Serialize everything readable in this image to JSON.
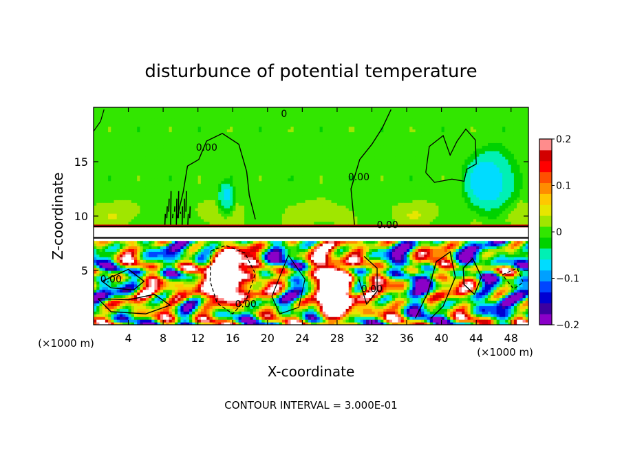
{
  "chart_data": {
    "type": "heatmap",
    "title": "disturbunce of potential temperature",
    "xlabel": "X-coordinate",
    "ylabel": "Z-coordinate",
    "x_unit_left": "(×1000 m)",
    "x_unit_right": "(×1000 m)",
    "footer": "CONTOUR INTERVAL = 3.000E-01",
    "xlim": [
      0,
      50
    ],
    "ylim": [
      0,
      20
    ],
    "x_ticks": [
      4,
      8,
      12,
      16,
      20,
      24,
      28,
      32,
      36,
      40,
      44,
      48
    ],
    "x_tick_labels": [
      "4",
      "8",
      "12",
      "16",
      "20",
      "24",
      "28",
      "32",
      "36",
      "40",
      "44",
      "48"
    ],
    "y_ticks": [
      5,
      10,
      15
    ],
    "y_tick_labels": [
      "5",
      "10",
      "15"
    ],
    "colorbar": {
      "min": -0.2,
      "max": 0.2,
      "ticks": [
        0.2,
        0.1,
        0,
        -0.1,
        -0.2
      ],
      "tick_labels": [
        "0.2",
        "0.1",
        "0",
        "−0.1",
        "−0.2"
      ],
      "colors": [
        "#8a00c8",
        "#3c00a0",
        "#0000d2",
        "#0046ff",
        "#00a0ff",
        "#00dcff",
        "#00f0b4",
        "#00d200",
        "#32e600",
        "#a0e600",
        "#e6e600",
        "#ffc800",
        "#ff8c00",
        "#ff5000",
        "#ff0000",
        "#d20000",
        "#ff8c8c"
      ]
    },
    "contour_labels": [
      {
        "text": "0.00",
        "x": 13.0,
        "z": 16.0
      },
      {
        "text": "0.00",
        "x": 30.5,
        "z": 13.3
      },
      {
        "text": "0.00",
        "x": 33.8,
        "z": 8.9
      },
      {
        "text": "0",
        "x": 21.9,
        "z": 19.1
      },
      {
        "text": "0.00",
        "x": 2.0,
        "z": 3.9
      },
      {
        "text": "0.00",
        "x": 17.5,
        "z": 1.6
      },
      {
        "text": "0.00",
        "x": 32.0,
        "z": 3.0
      }
    ],
    "regions": {
      "upper_field_value": 0.0,
      "upper_positive_band": {
        "z": [
          9.0,
          9.3
        ],
        "value": 0.2
      },
      "cool_patch_1": {
        "x": [
          14.0,
          16.5
        ],
        "z": [
          9.5,
          13.5
        ],
        "value": -0.07
      },
      "cool_patch_2": {
        "x": [
          42.0,
          49.5
        ],
        "z": [
          9.2,
          17.0
        ],
        "value": -0.08
      },
      "inversion_layer": {
        "z": [
          7.7,
          9.0
        ]
      },
      "lower_turbulent_layer": {
        "z": [
          0.0,
          7.7
        ],
        "range": [
          -0.2,
          0.2
        ]
      }
    }
  }
}
